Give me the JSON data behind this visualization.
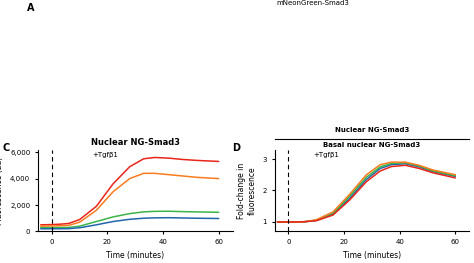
{
  "panel_C": {
    "title": "Nuclear NG-Smad3",
    "xlabel": "Time (minutes)",
    "ylabel": "Fluorescence (au)",
    "annotation": "+Tgfβ1",
    "xlim": [
      -5,
      65
    ],
    "ylim": [
      0,
      6200
    ],
    "yticks": [
      0,
      2000,
      4000,
      6000
    ],
    "ytick_labels": [
      "0",
      "2,000",
      "4,000",
      "6,000"
    ],
    "xticks": [
      0,
      20,
      40,
      60
    ],
    "dashed_x": 0,
    "lines": [
      {
        "color": "#e8251a",
        "values": [
          500,
          520,
          550,
          600,
          900,
          1900,
          3600,
          4900,
          5500,
          5600,
          5550,
          5450,
          5380,
          5300
        ]
      },
      {
        "color": "#f97c1e",
        "values": [
          400,
          415,
          430,
          460,
          700,
          1600,
          3000,
          4000,
          4400,
          4400,
          4300,
          4200,
          4100,
          4000
        ]
      },
      {
        "color": "#3ab54a",
        "values": [
          280,
          285,
          290,
          300,
          400,
          750,
          1100,
          1350,
          1480,
          1520,
          1530,
          1500,
          1480,
          1450
        ]
      },
      {
        "color": "#2166ac",
        "values": [
          200,
          202,
          205,
          210,
          280,
          500,
          750,
          920,
          1000,
          1030,
          1040,
          1020,
          1000,
          980
        ]
      }
    ],
    "time": [
      -4,
      0,
      3,
      6,
      10,
      16,
      22,
      28,
      33,
      37,
      42,
      47,
      52,
      60
    ]
  },
  "panel_D": {
    "title_top": "Nuclear NG-Smad3",
    "title_bot": "Basal nuclear NG-Smad3",
    "xlabel": "Time (minutes)",
    "ylabel": "Fold-change in\nfluorescence",
    "annotation": "+Tgfβ1",
    "xlim": [
      -5,
      65
    ],
    "ylim": [
      0.7,
      3.3
    ],
    "yticks": [
      1,
      2,
      3
    ],
    "xticks": [
      0,
      20,
      40,
      60
    ],
    "dashed_x": 0,
    "lines": [
      {
        "color": "#2166ac",
        "values": [
          1.0,
          1.0,
          1.0,
          1.01,
          1.05,
          1.25,
          1.75,
          2.35,
          2.7,
          2.82,
          2.85,
          2.75,
          2.6,
          2.45
        ]
      },
      {
        "color": "#3ab54a",
        "values": [
          1.0,
          1.0,
          1.0,
          1.01,
          1.06,
          1.28,
          1.82,
          2.42,
          2.75,
          2.86,
          2.88,
          2.78,
          2.62,
          2.47
        ]
      },
      {
        "color": "#f97c1e",
        "values": [
          1.0,
          1.0,
          1.0,
          1.01,
          1.07,
          1.32,
          1.88,
          2.5,
          2.82,
          2.9,
          2.9,
          2.8,
          2.65,
          2.5
        ]
      },
      {
        "color": "#e8251a",
        "values": [
          1.0,
          1.0,
          1.0,
          1.01,
          1.04,
          1.22,
          1.7,
          2.28,
          2.62,
          2.76,
          2.8,
          2.7,
          2.56,
          2.4
        ]
      }
    ],
    "time": [
      -4,
      0,
      3,
      6,
      10,
      16,
      22,
      28,
      33,
      37,
      42,
      47,
      52,
      60
    ]
  },
  "layout": {
    "figsize": [
      4.74,
      2.63
    ],
    "dpi": 100
  }
}
